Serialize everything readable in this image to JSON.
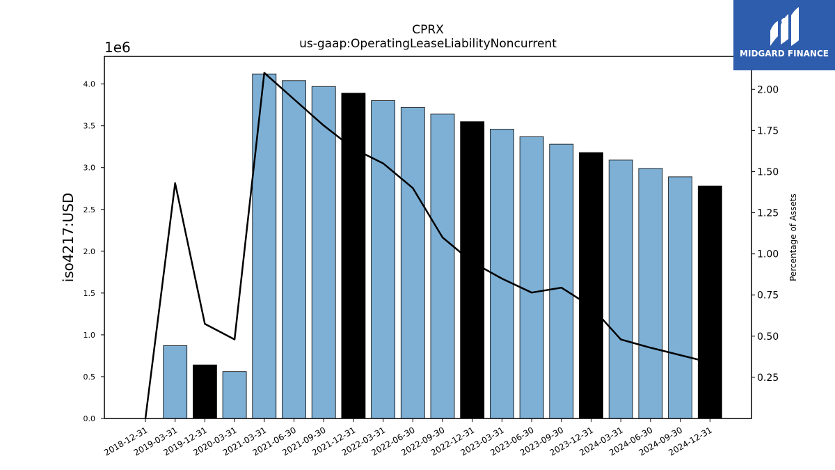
{
  "chart_data": {
    "type": "bar",
    "title": "CPRX",
    "subtitle": "us-gaap:OperatingLeaseLiabilityNoncurrent",
    "ylabel": "iso4217:USD",
    "y_offset_text": "1e6",
    "y2label": "Percentage of Assets",
    "ylim": [
      0,
      4.33
    ],
    "y2lim": [
      0,
      2.2
    ],
    "yticks": [
      "0.0",
      "0.5",
      "1.0",
      "1.5",
      "2.0",
      "2.5",
      "3.0",
      "3.5",
      "4.0"
    ],
    "y2ticks": [
      "0.25",
      "0.50",
      "0.75",
      "1.00",
      "1.25",
      "1.50",
      "1.75",
      "2.00"
    ],
    "categories": [
      "2018-12-31",
      "2019-03-31",
      "2019-12-31",
      "2020-03-31",
      "2021-03-31",
      "2021-06-30",
      "2021-09-30",
      "2021-12-31",
      "2022-03-31",
      "2022-06-30",
      "2022-09-30",
      "2022-12-31",
      "2023-03-31",
      "2023-06-30",
      "2023-09-30",
      "2023-12-31",
      "2024-03-31",
      "2024-06-30",
      "2024-09-30",
      "2024-12-31"
    ],
    "values": [
      0,
      0.87,
      0.64,
      0.56,
      4.12,
      4.04,
      3.97,
      3.89,
      3.8,
      3.72,
      3.64,
      3.55,
      3.46,
      3.37,
      3.28,
      3.18,
      3.09,
      2.99,
      2.89,
      2.78
    ],
    "bar_kind": [
      "quarter",
      "quarter",
      "annual",
      "quarter",
      "quarter",
      "quarter",
      "quarter",
      "annual",
      "quarter",
      "quarter",
      "quarter",
      "annual",
      "quarter",
      "quarter",
      "quarter",
      "annual",
      "quarter",
      "quarter",
      "quarter",
      "annual"
    ],
    "line_series": {
      "values": [
        0.0,
        1.43,
        0.575,
        0.48,
        2.1,
        1.94,
        1.78,
        1.64,
        1.55,
        1.4,
        1.1,
        0.95,
        0.85,
        0.765,
        0.795,
        0.68,
        0.48,
        0.43,
        0.385,
        0.34
      ]
    },
    "colors": {
      "quarter": "#7eb0d5",
      "annual": "#000000",
      "line": "#000000"
    }
  },
  "logo": {
    "text": "MIDGARD FINANCE"
  }
}
